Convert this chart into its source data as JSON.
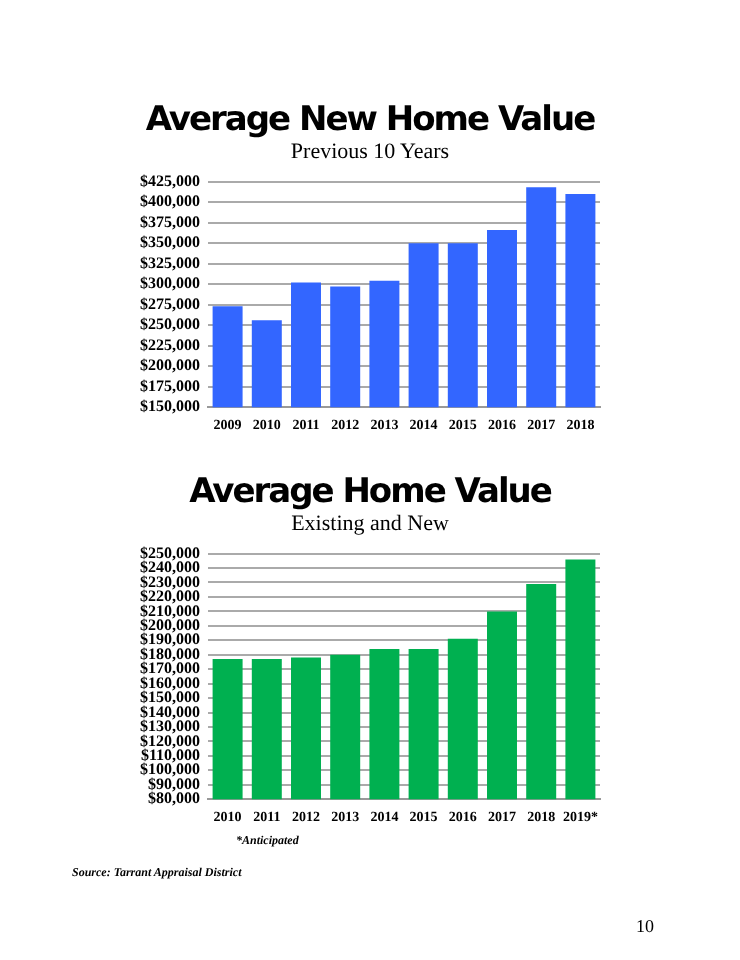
{
  "chart_data": [
    {
      "type": "bar",
      "title": "Average New Home Value",
      "subtitle": "Previous 10 Years",
      "categories": [
        "2009",
        "2010",
        "2011",
        "2012",
        "2013",
        "2014",
        "2015",
        "2016",
        "2017",
        "2018"
      ],
      "series": [
        {
          "color": "#3366ff",
          "values": [
            273000,
            256000,
            302000,
            297000,
            304000,
            350000,
            350000,
            366000,
            418000,
            410000
          ]
        }
      ],
      "ylim": [
        150000,
        425000
      ],
      "yticks": [
        {
          "value": 150000,
          "label": "$150,000"
        },
        {
          "value": 175000,
          "label": "$175,000"
        },
        {
          "value": 200000,
          "label": "$200,000"
        },
        {
          "value": 225000,
          "label": "$225,000"
        },
        {
          "value": 250000,
          "label": "$250,000"
        },
        {
          "value": 275000,
          "label": "$275,000"
        },
        {
          "value": 300000,
          "label": "$300,000"
        },
        {
          "value": 325000,
          "label": "$325,000"
        },
        {
          "value": 350000,
          "label": "$350,000"
        },
        {
          "value": 375000,
          "label": "$375,000"
        },
        {
          "value": 400000,
          "label": "$400,000"
        },
        {
          "value": 425000,
          "label": "$425,000"
        }
      ],
      "grid": "y",
      "legend": false
    },
    {
      "type": "bar",
      "title": "Average Home Value",
      "subtitle": "Existing and New",
      "categories": [
        "2010",
        "2011",
        "2012",
        "2013",
        "2014",
        "2015",
        "2016",
        "2017",
        "2018",
        "2019*"
      ],
      "series": [
        {
          "color": "#00b050",
          "values": [
            177000,
            177000,
            178000,
            180000,
            184000,
            184000,
            191000,
            210000,
            229000,
            246000
          ]
        }
      ],
      "ylim": [
        80000,
        250000
      ],
      "yticks": [
        {
          "value": 80000,
          "label": "$80,000"
        },
        {
          "value": 90000,
          "label": "$90,000"
        },
        {
          "value": 100000,
          "label": "$100,000"
        },
        {
          "value": 110000,
          "label": "$110,000"
        },
        {
          "value": 120000,
          "label": "$120,000"
        },
        {
          "value": 130000,
          "label": "$130,000"
        },
        {
          "value": 140000,
          "label": "$140,000"
        },
        {
          "value": 150000,
          "label": "$150,000"
        },
        {
          "value": 160000,
          "label": "$160,000"
        },
        {
          "value": 170000,
          "label": "$170,000"
        },
        {
          "value": 180000,
          "label": "$180,000"
        },
        {
          "value": 190000,
          "label": "$190,000"
        },
        {
          "value": 200000,
          "label": "$200,000"
        },
        {
          "value": 210000,
          "label": "$210,000"
        },
        {
          "value": 220000,
          "label": "$220,000"
        },
        {
          "value": 230000,
          "label": "$230,000"
        },
        {
          "value": 240000,
          "label": "$240,000"
        },
        {
          "value": 250000,
          "label": "$250,000"
        }
      ],
      "grid": "y",
      "legend": false,
      "annotations": [
        "*Anticipated",
        "Source: Tarrant Appraisal District",
        "10"
      ]
    }
  ]
}
